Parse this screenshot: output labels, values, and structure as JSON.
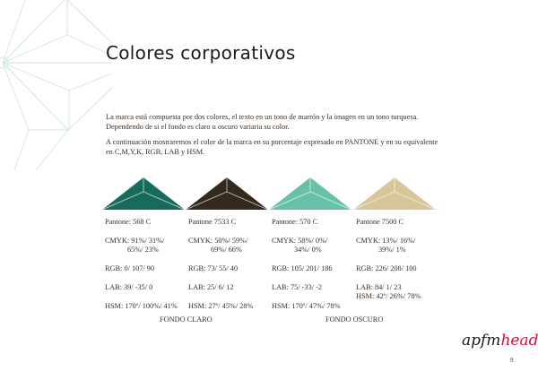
{
  "title": "Colores corporativos",
  "intro": {
    "p1": "La marca está compuesta por dos colores, el texto en un tono de marrón y la imagen en un tono turquesa. Dependendo de si el fondo es claro u oscuro variaria su color.",
    "p2": "A continuación mostraremos el color de la marca en su porcentaje expresado en PANTONE y en su equivalente en C,M,Y,K, RGB, LAB y HSM."
  },
  "swatches": [
    {
      "color": "#176b5a",
      "pantone": "Pantone: 568 C",
      "cmyk1": "CMYK: 91%/ 31%/",
      "cmyk2": "65%/ 23%",
      "rgb": "RGB: 0/ 107/ 90",
      "lab": "LAB: 39/ -35/ 0",
      "hsm": "HSM: 170º/ 100%/ 41%"
    },
    {
      "color": "#33291f",
      "pantone": "Pantone 7533 C",
      "cmyk1": "CMYK: 50%/ 59%/",
      "cmyk2": "69%/ 66%",
      "rgb": "RGB: 73/ 55/ 40",
      "lab": "LAB: 25/ 6/ 12",
      "hsm": "HSM: 27º/ 45%/ 28%"
    },
    {
      "color": "#69c0a8",
      "pantone": "Pantone: 570 C",
      "cmyk1": "CMYK: 58%/ 0%/",
      "cmyk2": "34%/ 0%",
      "rgb": "RGB: 105/ 201/ 186",
      "lab": "LAB: 75/ -33/ -2",
      "hsm": "HSM: 170º/ 47%/ 78%"
    },
    {
      "color": "#d6c69a",
      "pantone": "Pantone 7500 C",
      "cmyk1": "CMYK: 13%/ 16%/",
      "cmyk2": "39%/ 1%",
      "rgb": "RGB: 226/ 208/ 100",
      "lab": "LAB: 84/ 1/ 23",
      "hsm": "HSM: 42º/ 26%/ 78%"
    }
  ],
  "groups": {
    "light": "FONDO CLARO",
    "dark": "FONDO OSCURO"
  },
  "logo": {
    "part1": "apfm",
    "part2": "head",
    "color1": "#1a1a1a",
    "color2": "#d0103a"
  },
  "page_number": "9",
  "decor_color": "#cfe6df"
}
